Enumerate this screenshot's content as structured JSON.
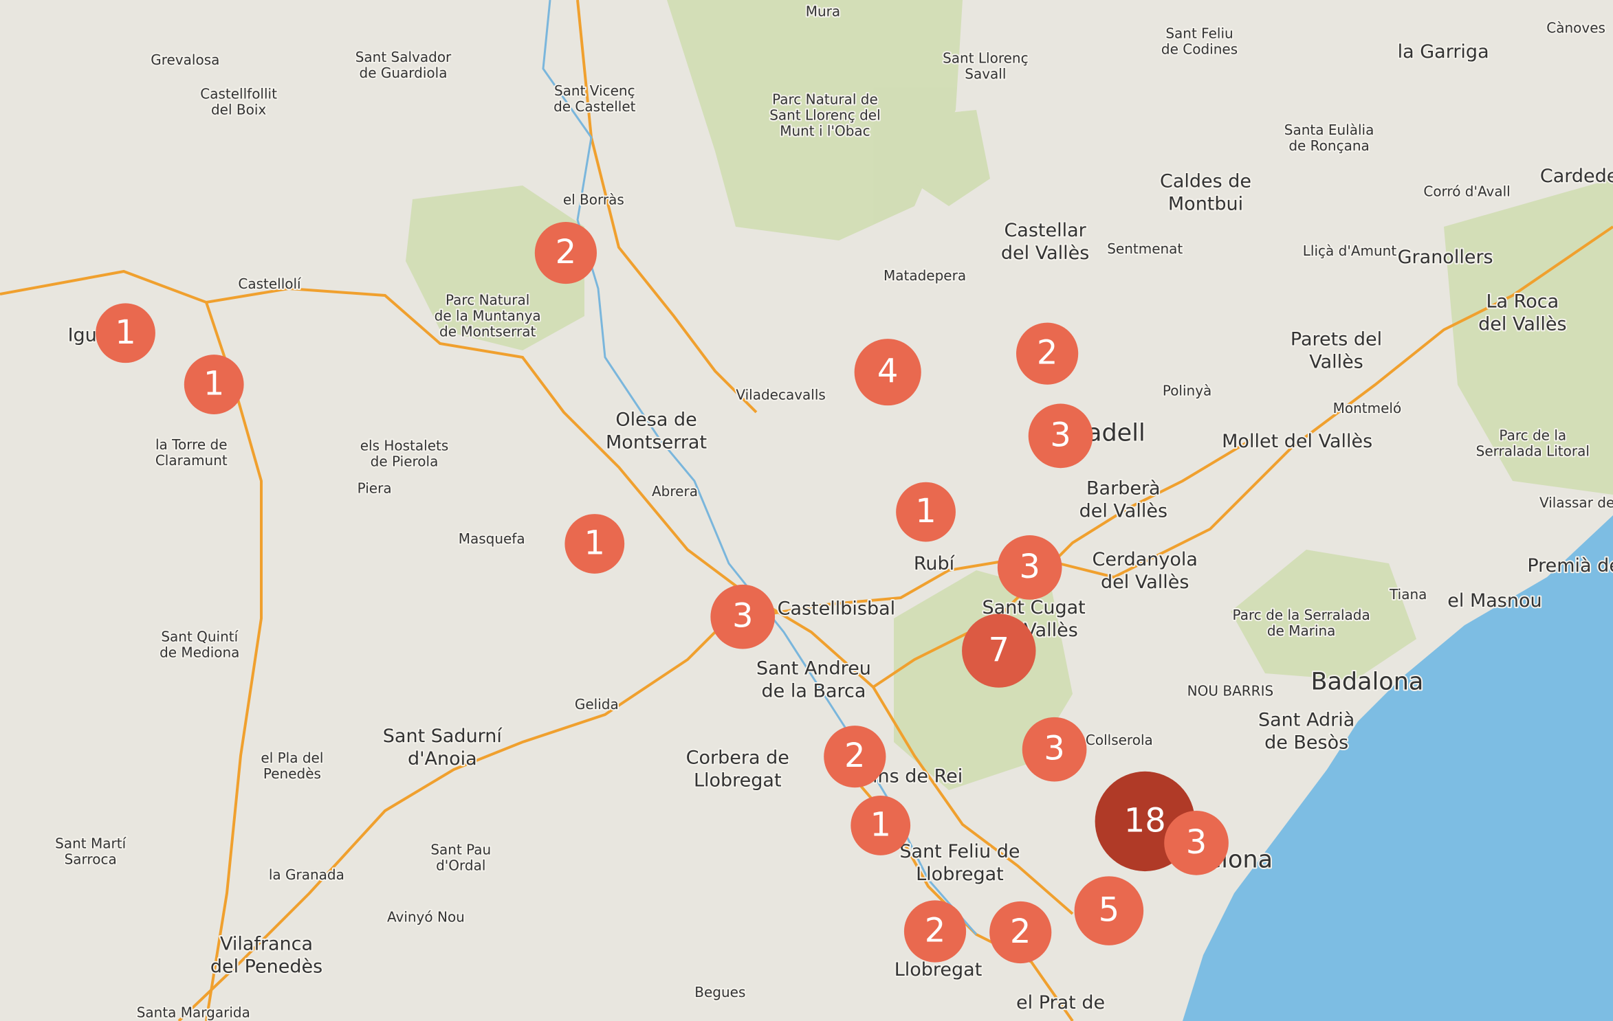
{
  "places": [
    {
      "lines": [
        "Mura"
      ]
    },
    {
      "lines": [
        "Grevalosa"
      ]
    },
    {
      "lines": [
        "Sant Salvador",
        "de Guardiola"
      ]
    },
    {
      "lines": [
        "Castellfollit",
        "del Boix"
      ]
    },
    {
      "lines": [
        "Sant Vicenç",
        "de Castellet"
      ]
    },
    {
      "lines": [
        "Parc Natural de",
        "Sant Llorenç del",
        "Munt i l'Obac"
      ]
    },
    {
      "lines": [
        "Sant Llorenç",
        "Savall"
      ]
    },
    {
      "lines": [
        "Sant Feliu",
        "de Codines"
      ]
    },
    {
      "lines": [
        "la Garriga"
      ]
    },
    {
      "lines": [
        "Cànoves"
      ]
    },
    {
      "lines": [
        "Santa Eulàlia",
        "de Ronçana"
      ]
    },
    {
      "lines": [
        "Caldes de",
        "Montbui"
      ]
    },
    {
      "lines": [
        "Corró d'Avall"
      ]
    },
    {
      "lines": [
        "Cardede"
      ]
    },
    {
      "lines": [
        "el Borràs"
      ]
    },
    {
      "lines": [
        "Castellar",
        "del Vallès"
      ]
    },
    {
      "lines": [
        "Sentmenat"
      ]
    },
    {
      "lines": [
        "Lliçà d'Amunt"
      ]
    },
    {
      "lines": [
        "Granollers"
      ]
    },
    {
      "lines": [
        "Castellolí"
      ]
    },
    {
      "lines": [
        "Parc Natural",
        "de la Muntanya",
        "de Montserrat"
      ]
    },
    {
      "lines": [
        "Matadepera"
      ]
    },
    {
      "lines": [
        "La Roca",
        "del Vallès"
      ]
    },
    {
      "lines": [
        "Parets del",
        "Vallès"
      ]
    },
    {
      "lines": [
        "Igu"
      ]
    },
    {
      "lines": [
        "Viladecavalls"
      ]
    },
    {
      "lines": [
        "Polinyà"
      ]
    },
    {
      "lines": [
        "Montmeló"
      ]
    },
    {
      "lines": [
        "Olesa de",
        "Montserrat"
      ]
    },
    {
      "lines": [
        "Parc de la",
        "Serralada Litoral"
      ]
    },
    {
      "lines": [
        "Mollet del Vallès"
      ]
    },
    {
      "lines": [
        "la Torre de",
        "Claramunt"
      ]
    },
    {
      "lines": [
        "els Hostalets",
        "de Pierola"
      ]
    },
    {
      "lines": [
        "Barberà",
        "del Vallès"
      ]
    },
    {
      "lines": [
        "Piera"
      ]
    },
    {
      "lines": [
        "Abrera"
      ]
    },
    {
      "lines": [
        "Vilassar de"
      ]
    },
    {
      "lines": [
        "Masquefa"
      ]
    },
    {
      "lines": [
        "Rubí"
      ]
    },
    {
      "lines": [
        "Cerdanyola",
        "del Vallès"
      ]
    },
    {
      "lines": [
        "Premià de"
      ]
    },
    {
      "lines": [
        "Tiana"
      ]
    },
    {
      "lines": [
        "el Masnou"
      ]
    },
    {
      "lines": [
        "Castellbisbal"
      ]
    },
    {
      "lines": [
        "Sant Cugat",
        "del Vallès"
      ]
    },
    {
      "lines": [
        "Parc de la Serralada",
        "de Marina"
      ]
    },
    {
      "lines": [
        "Sant Quintí",
        "de Mediona"
      ]
    },
    {
      "lines": [
        "Sant Andreu",
        "de la Barca"
      ]
    },
    {
      "lines": [
        "Badalona"
      ]
    },
    {
      "lines": [
        "NOU BARRIS"
      ]
    },
    {
      "lines": [
        "Gelida"
      ]
    },
    {
      "lines": [
        "Sant Adrià",
        "de Besòs"
      ]
    },
    {
      "lines": [
        "Sant Sadurní",
        "d'Anoia"
      ]
    },
    {
      "lines": [
        "el Pla del",
        "Penedès"
      ]
    },
    {
      "lines": [
        "Corbera de",
        "Llobregat"
      ]
    },
    {
      "lines": [
        "Sant Martí",
        "Sarroca"
      ]
    },
    {
      "lines": [
        "Sant Pau",
        "d'Ordal"
      ]
    },
    {
      "lines": [
        "Sant Feliu de",
        "Llobregat"
      ]
    },
    {
      "lines": [
        "la Granada"
      ]
    },
    {
      "lines": [
        "Avinyó Nou"
      ]
    },
    {
      "lines": [
        "Vilafranca",
        "del Penedès"
      ]
    },
    {
      "lines": [
        "Begues"
      ]
    },
    {
      "lines": [
        "Santa Margarida"
      ]
    },
    {
      "lines": [
        "el Prat de"
      ]
    },
    {
      "lines": [
        "Llobregat"
      ]
    },
    {
      "lines": [
        "adell"
      ]
    },
    {
      "lines": [
        "elona"
      ]
    },
    {
      "lines": [
        "Collserola"
      ]
    },
    {
      "lines": [
        "ins de Rei"
      ]
    }
  ],
  "clusters": [
    {
      "count": 2
    },
    {
      "count": 1
    },
    {
      "count": 1
    },
    {
      "count": 4
    },
    {
      "count": 2
    },
    {
      "count": 3
    },
    {
      "count": 1
    },
    {
      "count": 3
    },
    {
      "count": 1
    },
    {
      "count": 3
    },
    {
      "count": 7
    },
    {
      "count": 3
    },
    {
      "count": 2
    },
    {
      "count": 1
    },
    {
      "count": 18
    },
    {
      "count": 3
    },
    {
      "count": 5
    },
    {
      "count": 2
    },
    {
      "count": 2
    }
  ]
}
